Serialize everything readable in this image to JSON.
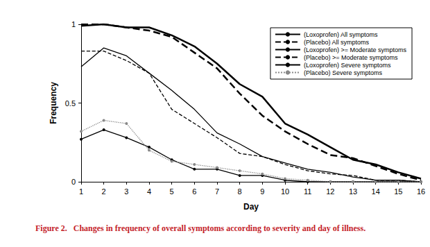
{
  "chart_data": {
    "type": "line",
    "title": "Figure 2.   Changes in frequency of overall symptoms according to severity and day of illness.",
    "x_label": "Day",
    "y_label": "Frequency",
    "x": [
      1,
      2,
      3,
      4,
      5,
      6,
      7,
      8,
      9,
      10,
      11,
      12,
      13,
      14,
      15,
      16
    ],
    "xlim": [
      1,
      16
    ],
    "xticks": [
      1,
      2,
      3,
      4,
      5,
      6,
      7,
      8,
      9,
      10,
      11,
      12,
      13,
      14,
      15,
      16
    ],
    "ylim": [
      0,
      1
    ],
    "yticks": [
      0,
      0.5,
      1
    ],
    "grid": false,
    "legend": "upper right",
    "series": [
      {
        "name": "(Loxoprofen) All symptoms",
        "color": "#000000",
        "line_style": "solid",
        "marker": "none",
        "values": [
          0.99,
          1.0,
          0.98,
          0.98,
          0.93,
          0.86,
          0.75,
          0.62,
          0.54,
          0.37,
          0.3,
          0.22,
          0.14,
          0.11,
          0.06,
          0.02
        ]
      },
      {
        "name": "(Placebo) All symptoms",
        "color": "#000000",
        "line_style": "dashed",
        "marker": "none",
        "values": [
          1.0,
          1.0,
          0.98,
          0.96,
          0.92,
          0.82,
          0.72,
          0.56,
          0.42,
          0.32,
          0.24,
          0.17,
          0.15,
          0.1,
          0.05,
          0.01
        ]
      },
      {
        "name": "(Loxoprofen) >= Moderate symptoms",
        "color": "#000000",
        "line_style": "solid",
        "marker": "none",
        "values": [
          0.73,
          0.85,
          0.8,
          0.69,
          0.58,
          0.46,
          0.31,
          0.24,
          0.16,
          0.12,
          0.08,
          0.06,
          0.03,
          0.01,
          0.01,
          0.0
        ]
      },
      {
        "name": "(Placebo) >= Moderate symptoms",
        "color": "#000000",
        "line_style": "dashed",
        "marker": "none",
        "values": [
          0.83,
          0.83,
          0.77,
          0.69,
          0.46,
          0.37,
          0.28,
          0.18,
          0.16,
          0.11,
          0.07,
          0.05,
          0.04,
          0.01,
          0.01,
          0.0
        ]
      },
      {
        "name": "(Loxoprofen) Severe symptoms",
        "color": "#000000",
        "line_style": "solid",
        "marker": "circle",
        "values": [
          0.27,
          0.33,
          0.28,
          0.22,
          0.14,
          0.08,
          0.08,
          0.04,
          0.04,
          0.01,
          0.0,
          0.0,
          0.0,
          0.0,
          0.0,
          0.0
        ]
      },
      {
        "name": "(Placebo) Severe symptoms",
        "color": "#888888",
        "line_style": "dotted",
        "marker": "circle",
        "values": [
          0.32,
          0.39,
          0.37,
          0.2,
          0.13,
          0.11,
          0.09,
          0.07,
          0.05,
          0.02,
          0.01,
          0.0,
          0.0,
          0.0,
          0.0,
          0.0
        ]
      }
    ]
  }
}
